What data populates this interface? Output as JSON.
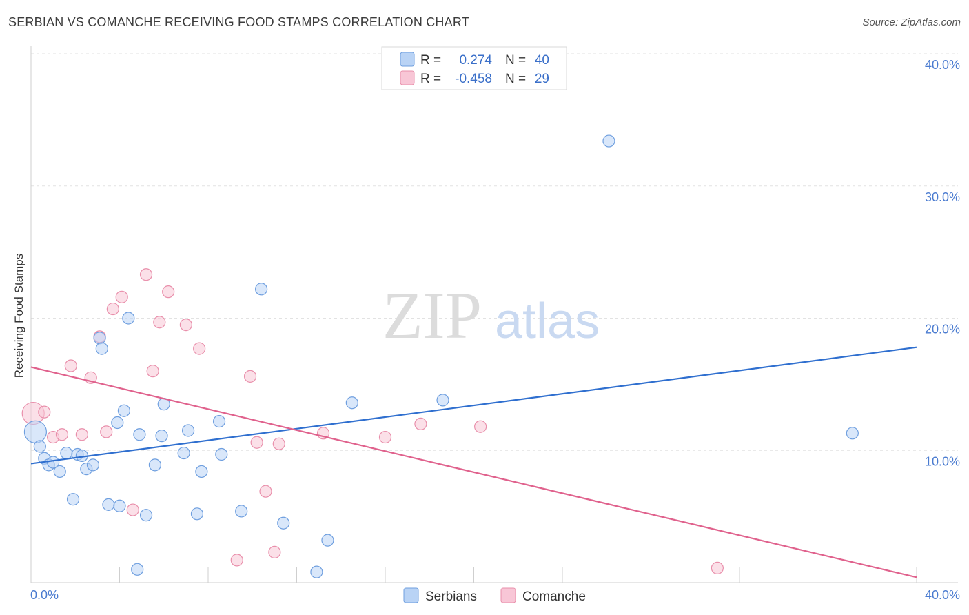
{
  "header": {
    "title": "SERBIAN VS COMANCHE RECEIVING FOOD STAMPS CORRELATION CHART",
    "source": "Source: ZipAtlas.com"
  },
  "watermark": {
    "zip": "ZIP",
    "atlas": "atlas"
  },
  "colors": {
    "serbians_fill": "#b9d3f5",
    "serbians_stroke": "#6f9fdf",
    "serbians_line": "#2f6fcf",
    "comanche_fill": "#f8c6d6",
    "comanche_stroke": "#e98fab",
    "comanche_line": "#e0628d",
    "grid": "#e2e2e2",
    "axis_text": "#4a7bd0"
  },
  "legend": {
    "rows": [
      {
        "r_label": "R =",
        "r_value": "0.274",
        "n_label": "N =",
        "n_value": "40"
      },
      {
        "r_label": "R =",
        "r_value": "-0.458",
        "n_label": "N =",
        "n_value": "29"
      }
    ]
  },
  "chart_data": {
    "type": "scatter",
    "title": "SERBIAN VS COMANCHE RECEIVING FOOD STAMPS CORRELATION CHART",
    "xlabel": "",
    "ylabel": "Receiving Food Stamps",
    "xlim": [
      0,
      40
    ],
    "ylim": [
      0,
      40
    ],
    "x_tick_labels": [
      "0.0%",
      "40.0%"
    ],
    "y_ticks": [
      10,
      20,
      30,
      40
    ],
    "y_tick_labels": [
      "10.0%",
      "20.0%",
      "30.0%",
      "40.0%"
    ],
    "legend_position": "top-center",
    "series": [
      {
        "name": "Serbians",
        "R": 0.274,
        "N": 40,
        "trend": {
          "x": [
            0,
            40
          ],
          "y": [
            9.0,
            17.8
          ]
        },
        "points": [
          [
            0.2,
            11.4
          ],
          [
            0.4,
            10.3
          ],
          [
            0.6,
            9.4
          ],
          [
            0.8,
            8.9
          ],
          [
            1.0,
            9.1
          ],
          [
            1.3,
            8.4
          ],
          [
            1.6,
            9.8
          ],
          [
            1.9,
            6.3
          ],
          [
            2.1,
            9.7
          ],
          [
            2.3,
            9.6
          ],
          [
            2.5,
            8.6
          ],
          [
            2.8,
            8.9
          ],
          [
            3.1,
            18.5
          ],
          [
            3.2,
            17.7
          ],
          [
            3.5,
            5.9
          ],
          [
            3.9,
            12.1
          ],
          [
            4.0,
            5.8
          ],
          [
            4.2,
            13.0
          ],
          [
            4.4,
            20.0
          ],
          [
            4.8,
            1.0
          ],
          [
            4.9,
            11.2
          ],
          [
            5.2,
            5.1
          ],
          [
            5.6,
            8.9
          ],
          [
            5.9,
            11.1
          ],
          [
            6.0,
            13.5
          ],
          [
            6.9,
            9.8
          ],
          [
            7.1,
            11.5
          ],
          [
            7.5,
            5.2
          ],
          [
            7.7,
            8.4
          ],
          [
            8.5,
            12.2
          ],
          [
            8.6,
            9.7
          ],
          [
            9.5,
            5.4
          ],
          [
            10.4,
            22.2
          ],
          [
            11.4,
            4.5
          ],
          [
            12.9,
            0.8
          ],
          [
            13.4,
            3.2
          ],
          [
            14.5,
            13.6
          ],
          [
            18.6,
            13.8
          ],
          [
            26.1,
            33.4
          ],
          [
            37.1,
            11.3
          ]
        ]
      },
      {
        "name": "Comanche",
        "R": -0.458,
        "N": 29,
        "trend": {
          "x": [
            0,
            40
          ],
          "y": [
            16.3,
            0.4
          ]
        },
        "points": [
          [
            0.1,
            12.8
          ],
          [
            0.6,
            12.9
          ],
          [
            1.0,
            11.0
          ],
          [
            1.4,
            11.2
          ],
          [
            1.8,
            16.4
          ],
          [
            2.3,
            11.2
          ],
          [
            2.7,
            15.5
          ],
          [
            3.1,
            18.6
          ],
          [
            3.4,
            11.4
          ],
          [
            3.7,
            20.7
          ],
          [
            4.1,
            21.6
          ],
          [
            4.6,
            5.5
          ],
          [
            5.2,
            23.3
          ],
          [
            5.5,
            16.0
          ],
          [
            5.8,
            19.7
          ],
          [
            6.2,
            22.0
          ],
          [
            7.0,
            19.5
          ],
          [
            7.6,
            17.7
          ],
          [
            9.3,
            1.7
          ],
          [
            9.9,
            15.6
          ],
          [
            10.2,
            10.6
          ],
          [
            10.6,
            6.9
          ],
          [
            11.0,
            2.3
          ],
          [
            11.2,
            10.5
          ],
          [
            13.2,
            11.3
          ],
          [
            16.0,
            11.0
          ],
          [
            17.6,
            12.0
          ],
          [
            20.3,
            11.8
          ],
          [
            31.0,
            1.1
          ]
        ]
      }
    ]
  }
}
